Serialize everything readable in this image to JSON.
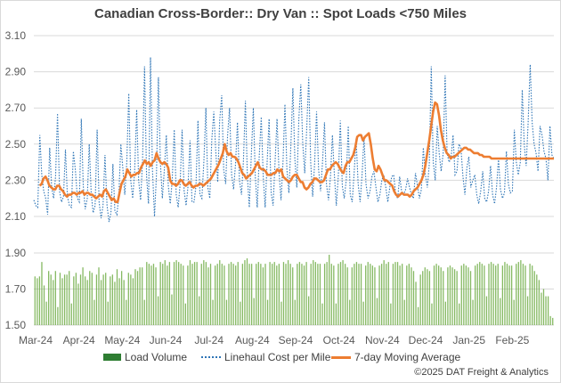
{
  "title": "Canadian Cross-Border:: Dry Van :: Spot Loads <750 Miles",
  "copyright": "©2025 DAT Freight & Analytics",
  "legend": {
    "volume": "Load Volume",
    "cost": "Linehaul Cost per Mile",
    "avg": "7-day Moving Average"
  },
  "colors": {
    "volume": "#70ad47",
    "volume_legend": "#2e7d32",
    "cost": "#2e75b6",
    "avg": "#ed7d31"
  },
  "chart_data": [
    {
      "type": "line",
      "ylim": [
        2.1,
        3.1
      ],
      "yticks": [
        "3.10",
        "2.90",
        "2.70",
        "2.50",
        "2.30",
        "2.10"
      ],
      "series": [
        {
          "name": "Linehaul Cost per Mile",
          "style": "dotted",
          "values": [
            2.19,
            2.16,
            2.15,
            2.55,
            2.33,
            2.24,
            2.2,
            2.11,
            2.48,
            2.26,
            2.2,
            2.32,
            2.67,
            2.24,
            2.18,
            2.21,
            2.47,
            2.21,
            2.16,
            2.15,
            2.46,
            2.36,
            2.2,
            2.18,
            2.64,
            2.27,
            2.14,
            2.2,
            2.5,
            2.23,
            2.12,
            2.16,
            2.58,
            2.18,
            2.09,
            2.16,
            2.44,
            2.16,
            2.07,
            2.12,
            2.39,
            2.13,
            2.11,
            2.22,
            2.5,
            2.37,
            2.22,
            2.4,
            2.78,
            2.3,
            2.2,
            2.35,
            2.69,
            2.3,
            2.19,
            2.41,
            2.93,
            2.32,
            2.17,
            2.98,
            2.36,
            2.1,
            2.33,
            2.87,
            2.4,
            2.2,
            2.36,
            2.55,
            2.27,
            2.17,
            2.3,
            2.58,
            2.22,
            2.15,
            2.28,
            2.58,
            2.24,
            2.16,
            2.27,
            2.52,
            2.18,
            2.18,
            2.27,
            2.63,
            2.22,
            2.2,
            2.41,
            2.7,
            2.26,
            2.2,
            2.52,
            2.68,
            2.46,
            2.29,
            2.63,
            2.77,
            2.36,
            2.28,
            2.55,
            2.7,
            2.33,
            2.25,
            2.39,
            2.62,
            2.3,
            2.22,
            2.41,
            2.74,
            2.32,
            2.15,
            2.45,
            2.7,
            2.32,
            2.15,
            2.43,
            2.65,
            2.32,
            2.15,
            2.4,
            2.64,
            2.23,
            2.16,
            2.4,
            2.64,
            2.35,
            2.19,
            2.4,
            2.72,
            2.36,
            2.23,
            2.5,
            2.81,
            2.42,
            2.26,
            2.64,
            2.83,
            2.5,
            2.34,
            2.58,
            2.87,
            2.4,
            2.21,
            2.39,
            2.68,
            2.36,
            2.24,
            2.4,
            2.62,
            2.28,
            2.19,
            2.32,
            2.55,
            2.33,
            2.16,
            2.33,
            2.63,
            2.27,
            2.2,
            2.3,
            2.6,
            2.22,
            2.18,
            2.34,
            2.53,
            2.28,
            2.18,
            2.33,
            2.54,
            2.28,
            2.2,
            2.24,
            2.32,
            2.35,
            2.26,
            2.18,
            2.22,
            2.3,
            2.33,
            2.26,
            2.18,
            2.26,
            2.32,
            2.33,
            2.22,
            2.2,
            2.32,
            2.24,
            2.22,
            2.25,
            2.31,
            2.26,
            2.22,
            2.2,
            2.34,
            2.27,
            2.2,
            2.25,
            2.48,
            2.33,
            2.26,
            2.39,
            2.93,
            2.4,
            2.3,
            2.6,
            2.45,
            2.35,
            2.45,
            2.88,
            2.45,
            2.4,
            2.42,
            2.55,
            2.33,
            2.35,
            2.5,
            2.48,
            2.32,
            2.22,
            2.37,
            2.43,
            2.26,
            2.3,
            2.33,
            2.22,
            2.17,
            2.24,
            2.35,
            2.2,
            2.18,
            2.24,
            2.38,
            2.22,
            2.17,
            2.26,
            2.42,
            2.25,
            2.2,
            2.23,
            2.46,
            2.28,
            2.23,
            2.24,
            2.58,
            2.4,
            2.33,
            2.4,
            2.8,
            2.5,
            2.38,
            2.62,
            2.94,
            2.62,
            2.5,
            2.45,
            2.35,
            2.6,
            2.55,
            2.46,
            2.42,
            2.3,
            2.6,
            2.44,
            2.42
          ]
        },
        {
          "name": "7-day Moving Average",
          "style": "solid",
          "values": [
            null,
            null,
            null,
            2.27,
            2.28,
            2.31,
            2.32,
            2.3,
            2.27,
            2.26,
            2.25,
            2.25,
            2.27,
            2.27,
            2.25,
            2.24,
            2.22,
            2.21,
            2.22,
            2.22,
            2.23,
            2.23,
            2.22,
            2.23,
            2.23,
            2.24,
            2.22,
            2.23,
            2.23,
            2.22,
            2.22,
            2.21,
            2.2,
            2.21,
            2.22,
            2.21,
            2.24,
            2.25,
            2.23,
            2.21,
            2.19,
            2.2,
            2.18,
            2.18,
            2.23,
            2.28,
            2.3,
            2.32,
            2.36,
            2.34,
            2.32,
            2.33,
            2.33,
            2.34,
            2.34,
            2.37,
            2.39,
            2.41,
            2.39,
            2.4,
            2.38,
            2.4,
            2.41,
            2.45,
            2.42,
            2.4,
            2.39,
            2.4,
            2.39,
            2.37,
            2.3,
            2.28,
            2.28,
            2.27,
            2.28,
            2.3,
            2.3,
            2.28,
            2.27,
            2.28,
            2.29,
            2.27,
            2.26,
            2.27,
            2.27,
            2.28,
            2.28,
            2.27,
            2.28,
            2.29,
            2.3,
            2.31,
            2.33,
            2.35,
            2.37,
            2.39,
            2.42,
            2.45,
            2.5,
            2.46,
            2.44,
            2.45,
            2.43,
            2.43,
            2.42,
            2.4,
            2.37,
            2.34,
            2.33,
            2.31,
            2.32,
            2.33,
            2.34,
            2.36,
            2.38,
            2.4,
            2.37,
            2.36,
            2.36,
            2.35,
            2.33,
            2.33,
            2.33,
            2.34,
            2.34,
            2.36,
            2.35,
            2.36,
            2.32,
            2.31,
            2.3,
            2.29,
            2.3,
            2.32,
            2.33,
            2.33,
            2.31,
            2.29,
            2.29,
            2.26,
            2.25,
            2.26,
            2.28,
            2.29,
            2.31,
            2.31,
            2.3,
            2.29,
            2.29,
            2.3,
            2.33,
            2.36,
            2.36,
            2.38,
            2.39,
            2.4,
            2.39,
            2.37,
            2.35,
            2.34,
            2.38,
            2.4,
            2.4,
            2.42,
            2.44,
            2.48,
            2.54,
            2.55,
            2.55,
            2.52,
            2.54,
            2.55,
            2.56,
            2.5,
            2.42,
            2.36,
            2.35,
            2.38,
            2.36,
            2.33,
            2.3,
            2.3,
            2.29,
            2.28,
            2.27,
            2.24,
            2.22,
            2.21,
            2.22,
            2.23,
            2.22,
            2.22,
            2.22,
            2.21,
            2.22,
            2.24,
            2.25,
            2.26,
            2.28,
            2.3,
            2.33,
            2.38,
            2.45,
            2.52,
            2.6,
            2.68,
            2.73,
            2.72,
            2.66,
            2.58,
            2.52,
            2.48,
            2.45,
            2.44,
            2.42,
            2.43,
            2.43,
            2.44,
            2.45,
            2.46,
            2.47,
            2.48,
            2.48,
            2.47,
            2.47,
            2.46,
            2.45,
            2.45,
            2.45,
            2.44,
            2.44,
            2.43,
            2.43,
            2.43,
            2.43,
            2.42,
            2.42,
            2.42,
            2.42,
            2.42,
            2.42,
            2.42,
            2.42,
            2.42,
            2.42,
            2.42,
            2.42,
            2.42,
            2.42,
            2.42,
            2.42,
            2.42,
            2.42,
            2.42,
            2.42,
            2.42,
            2.42,
            2.42,
            2.42,
            2.42,
            2.42,
            2.42,
            2.42,
            2.42,
            2.42,
            2.42,
            2.42,
            2.42
          ]
        }
      ]
    },
    {
      "type": "bar",
      "ylim": [
        1.5,
        1.9
      ],
      "yticks": [
        "1.90",
        "1.70",
        "1.50"
      ],
      "series": [
        {
          "name": "Load Volume",
          "values": [
            1.77,
            1.76,
            1.77,
            1.85,
            1.72,
            1.63,
            1.8,
            1.78,
            1.75,
            1.8,
            1.6,
            1.79,
            1.76,
            1.78,
            1.78,
            1.8,
            1.62,
            1.77,
            1.79,
            1.73,
            1.78,
            1.82,
            1.77,
            1.75,
            1.8,
            1.79,
            1.64,
            1.78,
            1.82,
            1.75,
            1.78,
            1.79,
            1.63,
            1.77,
            1.78,
            1.74,
            1.81,
            1.76,
            1.8,
            1.75,
            1.64,
            1.79,
            1.78,
            1.76,
            1.81,
            1.8,
            1.82,
            1.82,
            1.64,
            1.85,
            1.84,
            1.83,
            1.84,
            1.82,
            1.66,
            1.85,
            1.84,
            1.86,
            1.83,
            1.85,
            1.67,
            1.85,
            1.86,
            1.85,
            1.84,
            1.83,
            1.62,
            1.83,
            1.86,
            1.84,
            1.85,
            1.85,
            1.66,
            1.84,
            1.86,
            1.85,
            1.82,
            1.84,
            1.64,
            1.83,
            1.84,
            1.86,
            1.84,
            1.83,
            1.64,
            1.84,
            1.85,
            1.84,
            1.83,
            1.85,
            1.63,
            1.84,
            1.86,
            1.87,
            1.84,
            1.84,
            1.65,
            1.84,
            1.85,
            1.84,
            1.82,
            1.84,
            1.64,
            1.85,
            1.84,
            1.85,
            1.83,
            1.84,
            1.63,
            1.85,
            1.84,
            1.86,
            1.84,
            1.82,
            1.64,
            1.84,
            1.85,
            1.84,
            1.83,
            1.85,
            1.66,
            1.84,
            1.86,
            1.85,
            1.84,
            1.84,
            1.62,
            1.84,
            1.85,
            1.89,
            1.84,
            1.83,
            1.62,
            1.84,
            1.85,
            1.86,
            1.84,
            1.82,
            1.64,
            1.82,
            1.84,
            1.85,
            1.84,
            1.84,
            1.63,
            1.83,
            1.85,
            1.84,
            1.83,
            1.82,
            1.65,
            1.83,
            1.84,
            1.86,
            1.84,
            1.85,
            1.62,
            1.84,
            1.85,
            1.85,
            1.83,
            1.84,
            1.64,
            1.83,
            1.84,
            1.82,
            1.8,
            1.74,
            1.6,
            1.78,
            1.8,
            1.82,
            1.81,
            1.8,
            1.62,
            1.83,
            1.84,
            1.83,
            1.82,
            1.8,
            1.63,
            1.82,
            1.83,
            1.82,
            1.81,
            1.8,
            1.62,
            1.83,
            1.84,
            1.83,
            1.82,
            1.8,
            1.64,
            1.83,
            1.84,
            1.85,
            1.84,
            1.83,
            1.66,
            1.84,
            1.85,
            1.84,
            1.83,
            1.84,
            1.65,
            1.83,
            1.85,
            1.84,
            1.83,
            1.83,
            1.64,
            1.84,
            1.85,
            1.86,
            1.84,
            1.83,
            1.66,
            1.84,
            1.83,
            1.8,
            1.78,
            1.75,
            1.68,
            1.7,
            1.66,
            1.66,
            1.55,
            1.54
          ]
        }
      ]
    }
  ],
  "x_axis": {
    "labels": [
      "Mar-24",
      "Apr-24",
      "May-24",
      "Jun-24",
      "Jul-24",
      "Aug-24",
      "Sep-24",
      "Oct-24",
      "Nov-24",
      "Dec-24",
      "Jan-25",
      "Feb-25"
    ]
  }
}
